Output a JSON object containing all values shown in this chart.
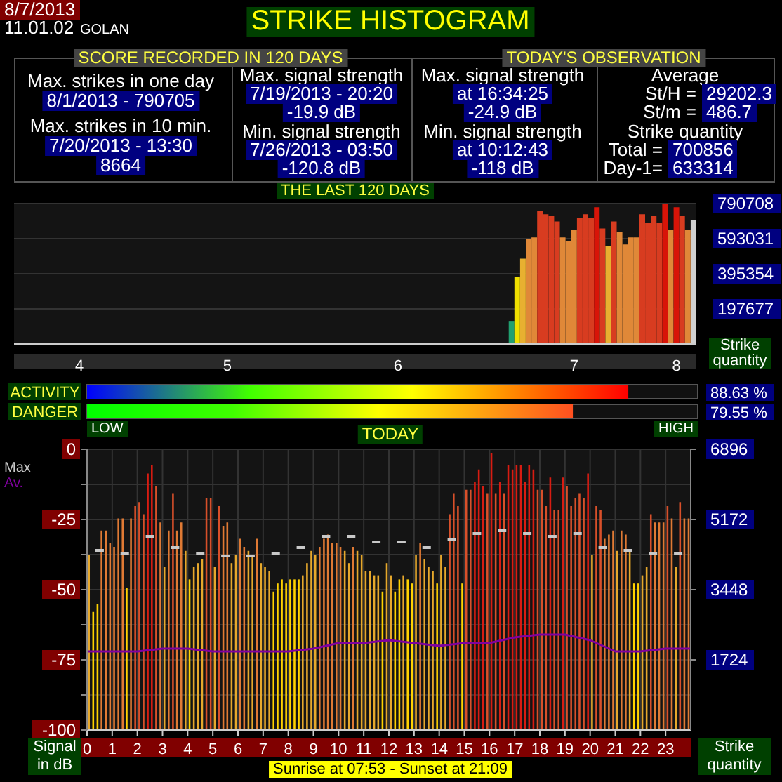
{
  "chart_data": [
    {
      "type": "other",
      "title": "STRIKE HISTOGRAM",
      "annotations": [
        "8/7/2013",
        "11.01.02",
        "GOLAN",
        "SCORE RECORDED IN 120 DAYS",
        "TODAY'S OBSERVATION",
        "Max. strikes in one day",
        "8/1/2013 - 790705",
        "Max. strikes in 10 min.",
        "7/20/2013 - 13:30",
        "8664",
        "Max. signal strength",
        "7/19/2013 - 20:20",
        "-19.9 dB",
        "Min. signal strength",
        "7/26/2013 - 03:50",
        "-120.8 dB",
        "Max. signal strength",
        "at 16:34:25",
        "-24.9 dB",
        "Min. signal strength",
        "at 10:12:43",
        "-118 dB",
        "Average",
        "St/H =",
        "29202.3",
        "St/m =",
        "486.7",
        "Strike quantity",
        "Total  =",
        "700856",
        "Day-1=",
        "633314"
      ]
    },
    {
      "type": "bar",
      "title": "THE LAST 120 DAYS",
      "ylabel": "Strike quantity",
      "categories": [
        null,
        null,
        null,
        null,
        null,
        null,
        null,
        null,
        null,
        null,
        null,
        "4",
        null,
        null,
        null,
        null,
        null,
        null,
        null,
        null,
        null,
        null,
        null,
        null,
        null,
        null,
        null,
        null,
        null,
        null,
        null,
        null,
        null,
        null,
        null,
        null,
        null,
        "5",
        null,
        null,
        null,
        null,
        null,
        null,
        null,
        null,
        null,
        null,
        null,
        null,
        null,
        null,
        null,
        null,
        null,
        null,
        null,
        null,
        null,
        null,
        null,
        null,
        null,
        null,
        null,
        null,
        null,
        "6",
        null,
        null,
        null,
        null,
        null,
        null,
        null,
        null,
        null,
        null,
        null,
        null,
        null,
        null,
        null,
        null,
        null,
        null,
        null,
        null,
        null,
        null,
        null,
        null,
        null,
        null,
        null,
        null,
        null,
        null,
        "7",
        null,
        null,
        null,
        null,
        null,
        null,
        null,
        null,
        null,
        null,
        null,
        null,
        null,
        null,
        null,
        null,
        null,
        "8",
        null,
        null,
        null
      ],
      "ylim": [
        0,
        790708
      ],
      "yticks": [
        197677,
        395354,
        593031,
        790708
      ],
      "grid": "y",
      "values": [
        null,
        null,
        null,
        null,
        null,
        null,
        null,
        null,
        null,
        null,
        null,
        null,
        null,
        null,
        null,
        null,
        null,
        null,
        null,
        null,
        null,
        null,
        null,
        null,
        null,
        null,
        null,
        null,
        null,
        null,
        null,
        null,
        null,
        null,
        null,
        null,
        null,
        null,
        null,
        null,
        null,
        null,
        null,
        null,
        null,
        null,
        null,
        null,
        null,
        null,
        null,
        null,
        null,
        null,
        null,
        null,
        null,
        null,
        null,
        null,
        null,
        null,
        null,
        null,
        null,
        null,
        null,
        null,
        null,
        null,
        null,
        null,
        null,
        null,
        null,
        null,
        null,
        null,
        null,
        null,
        null,
        null,
        null,
        null,
        null,
        null,
        null,
        130000,
        380000,
        480000,
        590000,
        600000,
        750000,
        730000,
        720000,
        690000,
        600000,
        580000,
        640000,
        710000,
        730000,
        710000,
        770000,
        650000,
        550000,
        690000,
        630000,
        560000,
        600000,
        600000,
        730000,
        680000,
        720000,
        680000,
        790000,
        640000,
        770000,
        720000,
        640000,
        700000
      ],
      "colors": [
        null,
        null,
        null,
        null,
        null,
        null,
        null,
        null,
        null,
        null,
        null,
        null,
        null,
        null,
        null,
        null,
        null,
        null,
        null,
        null,
        null,
        null,
        null,
        null,
        null,
        null,
        null,
        null,
        null,
        null,
        null,
        null,
        null,
        null,
        null,
        null,
        null,
        null,
        null,
        null,
        null,
        null,
        null,
        null,
        null,
        null,
        null,
        null,
        null,
        null,
        null,
        null,
        null,
        null,
        null,
        null,
        null,
        null,
        null,
        null,
        null,
        null,
        null,
        null,
        null,
        null,
        null,
        null,
        null,
        null,
        null,
        null,
        null,
        null,
        null,
        null,
        null,
        null,
        null,
        null,
        null,
        null,
        null,
        null,
        null,
        null,
        null,
        "#20a070",
        "#f0e000",
        "#e8b030",
        "#e08838",
        "#e08838",
        "#d83c20",
        "#d83c20",
        "#d83c20",
        "#d83c20",
        "#e08838",
        "#e08838",
        "#e08838",
        "#d83c20",
        "#d83c20",
        "#d83c20",
        "#d81408",
        "#d83c20",
        "#e8b030",
        "#d83c20",
        "#e08838",
        "#e08838",
        "#e08838",
        "#e08838",
        "#d83c20",
        "#d83c20",
        "#d83c20",
        "#d83c20",
        "#d81408",
        "#e08838",
        "#d81408",
        "#d83c20",
        "#e08838",
        "#d0d0d0"
      ]
    },
    {
      "type": "bar",
      "orientation": "horizontal",
      "categories": [
        "ACTIVITY",
        "DANGER"
      ],
      "values": [
        88.63,
        79.55
      ],
      "colors": [
        "#ff0000",
        "#ff5020"
      ],
      "value_labels": [
        "88.63 %",
        "79.55 %"
      ],
      "xlim": [
        0,
        100
      ],
      "annotations": [
        "LOW",
        "HIGH"
      ]
    },
    {
      "type": "bar",
      "title": "TODAY",
      "ylabel": "Signal in dB",
      "y2label": "Strike quantity",
      "xlim": [
        0,
        24
      ],
      "xticks": [
        0,
        1,
        2,
        3,
        4,
        5,
        6,
        7,
        8,
        9,
        10,
        11,
        12,
        13,
        14,
        15,
        16,
        17,
        18,
        19,
        20,
        21,
        22,
        23
      ],
      "ylim": [
        -100,
        0
      ],
      "yticks": [
        0,
        {
          "value": -12.5,
          "label": null
        },
        -25,
        {
          "value": -37.5,
          "label": null
        },
        -50,
        {
          "value": -62.5,
          "label": null
        },
        -75,
        {
          "value": -87.5,
          "label": null
        },
        -100
      ],
      "y2lim": [
        0,
        6896
      ],
      "y2ticks": [
        1724,
        3448,
        5172,
        6896
      ],
      "grid": true,
      "legend": "top left",
      "annotations": [
        "Sunrise at 07:53  -  Sunset at 21:09"
      ],
      "series": [
        {
          "type": "bar",
          "axis": "y2",
          "x": [
            0.08,
            0.25,
            0.42,
            0.58,
            0.75,
            0.92,
            1.08,
            1.25,
            1.42,
            1.58,
            1.75,
            1.92,
            2.08,
            2.25,
            2.42,
            2.58,
            2.75,
            2.92,
            3.08,
            3.25,
            3.42,
            3.58,
            3.75,
            3.92,
            4.08,
            4.25,
            4.42,
            4.58,
            4.75,
            4.92,
            5.08,
            5.25,
            5.42,
            5.58,
            5.75,
            5.92,
            6.08,
            6.25,
            6.42,
            6.58,
            6.75,
            6.92,
            7.08,
            7.25,
            7.42,
            7.58,
            7.75,
            7.92,
            8.08,
            8.25,
            8.42,
            8.58,
            8.75,
            8.92,
            9.08,
            9.25,
            9.42,
            9.58,
            9.75,
            9.92,
            10.08,
            10.25,
            10.42,
            10.58,
            10.75,
            10.92,
            11.08,
            11.25,
            11.42,
            11.58,
            11.75,
            11.92,
            12.08,
            12.25,
            12.42,
            12.58,
            12.75,
            12.92,
            13.08,
            13.25,
            13.42,
            13.58,
            13.75,
            13.92,
            14.08,
            14.25,
            14.42,
            14.58,
            14.75,
            14.92,
            15.08,
            15.25,
            15.42,
            15.58,
            15.75,
            15.92,
            16.08,
            16.25,
            16.42,
            16.58,
            16.75,
            16.92,
            17.08,
            17.25,
            17.42,
            17.58,
            17.75,
            17.92,
            18.08,
            18.25,
            18.42,
            18.58,
            18.75,
            18.92,
            19.08,
            19.25,
            19.42,
            19.58,
            19.75,
            19.92,
            20.08,
            20.25,
            20.42,
            20.58,
            20.75,
            20.92,
            21.08,
            21.25,
            21.42,
            21.58,
            21.75,
            21.92,
            22.08,
            22.25,
            22.42,
            22.58,
            22.75,
            22.92,
            23.08,
            23.25,
            23.42,
            23.58,
            23.75,
            23.92
          ],
          "values": [
            4300,
            2900,
            3100,
            4900,
            4900,
            4600,
            4500,
            5200,
            5200,
            3500,
            5200,
            5500,
            5600,
            5300,
            6300,
            6500,
            6000,
            5100,
            4000,
            4900,
            5800,
            4900,
            5100,
            4400,
            3700,
            4000,
            4100,
            4200,
            5700,
            5700,
            4000,
            5500,
            5000,
            5100,
            4100,
            4300,
            4700,
            4500,
            4400,
            4300,
            4700,
            4100,
            4000,
            3900,
            3400,
            3600,
            3700,
            3600,
            3700,
            3700,
            3700,
            3800,
            4100,
            4400,
            4300,
            4500,
            4700,
            4800,
            4600,
            4600,
            4500,
            4400,
            4100,
            4500,
            4400,
            4300,
            3900,
            3900,
            3800,
            3800,
            3400,
            4100,
            3800,
            3400,
            3700,
            3800,
            3700,
            3600,
            4300,
            4600,
            4200,
            4000,
            3900,
            3600,
            4300,
            4000,
            5300,
            5800,
            5500,
            3600,
            5900,
            5900,
            6100,
            6400,
            6000,
            5800,
            6800,
            5800,
            6100,
            5800,
            6500,
            6400,
            6500,
            6500,
            6100,
            6500,
            6400,
            5900,
            5900,
            5500,
            6200,
            5400,
            5400,
            6200,
            6000,
            5500,
            5700,
            5800,
            5700,
            6300,
            4300,
            5500,
            5400,
            4700,
            4800,
            4900,
            4400,
            4900,
            4800,
            4400,
            3600,
            3600,
            3800,
            4000,
            5300,
            5100,
            5100,
            5100,
            5500,
            5200,
            4000,
            5600,
            5200,
            5200
          ],
          "colors": [
            "#e6a82c",
            "#ffd200",
            "#ffd200",
            "#e07a34",
            "#e07a34",
            "#e07a34",
            "#e07a34",
            "#e07a34",
            "#e07a34",
            "#ffd200",
            "#e07a34",
            "#d8502a",
            "#d8502a",
            "#d8502a",
            "#d81c12",
            "#d81c12",
            "#d8502a",
            "#e07a34",
            "#e6a82c",
            "#e07a34",
            "#d8502a",
            "#e07a34",
            "#e07a34",
            "#e6a82c",
            "#ffd200",
            "#e6a82c",
            "#e6a82c",
            "#e6a82c",
            "#d8502a",
            "#d8502a",
            "#e6a82c",
            "#d8502a",
            "#e07a34",
            "#e07a34",
            "#e6a82c",
            "#e6a82c",
            "#e07a34",
            "#e07a34",
            "#e6a82c",
            "#e6a82c",
            "#e07a34",
            "#e6a82c",
            "#e6a82c",
            "#e6a82c",
            "#ffd200",
            "#ffd200",
            "#ffd200",
            "#ffd200",
            "#ffd200",
            "#ffd200",
            "#ffd200",
            "#e6a82c",
            "#e6a82c",
            "#e6a82c",
            "#e6a82c",
            "#e07a34",
            "#e07a34",
            "#e07a34",
            "#e07a34",
            "#e07a34",
            "#e07a34",
            "#e6a82c",
            "#e6a82c",
            "#e07a34",
            "#e6a82c",
            "#e6a82c",
            "#e6a82c",
            "#e6a82c",
            "#e6a82c",
            "#e6a82c",
            "#ffd200",
            "#e6a82c",
            "#e6a82c",
            "#ffd200",
            "#ffd200",
            "#e6a82c",
            "#ffd200",
            "#ffd200",
            "#e6a82c",
            "#e07a34",
            "#e6a82c",
            "#e6a82c",
            "#e6a82c",
            "#ffd200",
            "#e6a82c",
            "#e6a82c",
            "#d8502a",
            "#d8502a",
            "#d8502a",
            "#ffd200",
            "#d8502a",
            "#d8502a",
            "#d81c12",
            "#d81c12",
            "#d81c12",
            "#d8502a",
            "#d81c12",
            "#d8502a",
            "#d81c12",
            "#d8502a",
            "#d81c12",
            "#d81c12",
            "#d81c12",
            "#d81c12",
            "#d81c12",
            "#d81c12",
            "#d81c12",
            "#d8502a",
            "#d8502a",
            "#d8502a",
            "#d81c12",
            "#d8502a",
            "#d8502a",
            "#d81c12",
            "#d8502a",
            "#d8502a",
            "#d8502a",
            "#d8502a",
            "#d8502a",
            "#d81c12",
            "#e6a82c",
            "#d8502a",
            "#d8502a",
            "#e07a34",
            "#e07a34",
            "#e07a34",
            "#e6a82c",
            "#e07a34",
            "#e07a34",
            "#e6a82c",
            "#ffd200",
            "#ffd200",
            "#e6a82c",
            "#e6a82c",
            "#d8502a",
            "#e07a34",
            "#e07a34",
            "#e07a34",
            "#d8502a",
            "#e07a34",
            "#e6a82c",
            "#d8502a",
            "#e07a34",
            "#e07a34"
          ]
        },
        {
          "type": "scatter",
          "name": "Max",
          "color": "#c8c8c8",
          "axis": "y",
          "x": [
            0.5,
            1.5,
            2.5,
            3.5,
            4.5,
            5.5,
            6.5,
            7.5,
            8.5,
            9.5,
            10.5,
            11.5,
            12.5,
            13.5,
            14.5,
            15.5,
            16.5,
            17.5,
            18.5,
            19.5,
            20.5,
            21.5,
            22.5,
            23.5
          ],
          "values": [
            -36,
            -37,
            -31,
            -35,
            -37,
            -38,
            -38,
            -37,
            -35,
            -31,
            -31,
            -33,
            -33,
            -35,
            -32,
            -30,
            -29,
            -30,
            -31,
            -30,
            -35,
            -36,
            -37,
            -37
          ]
        },
        {
          "type": "line",
          "name": "Av.",
          "color": "#8000a0",
          "axis": "y",
          "x": [
            0,
            1,
            2,
            3,
            4,
            5,
            6,
            7,
            8,
            9,
            10,
            11,
            12,
            13,
            14,
            15,
            16,
            17,
            18,
            19,
            20,
            21,
            22,
            23,
            24
          ],
          "values": [
            -72,
            -72,
            -72,
            -71,
            -71,
            -72,
            -72,
            -72,
            -72,
            -71,
            -69,
            -69,
            -68,
            -69,
            -70,
            -69,
            -69,
            -67,
            -66,
            -66,
            -68,
            -72,
            -72,
            -71,
            -71
          ]
        }
      ]
    }
  ]
}
